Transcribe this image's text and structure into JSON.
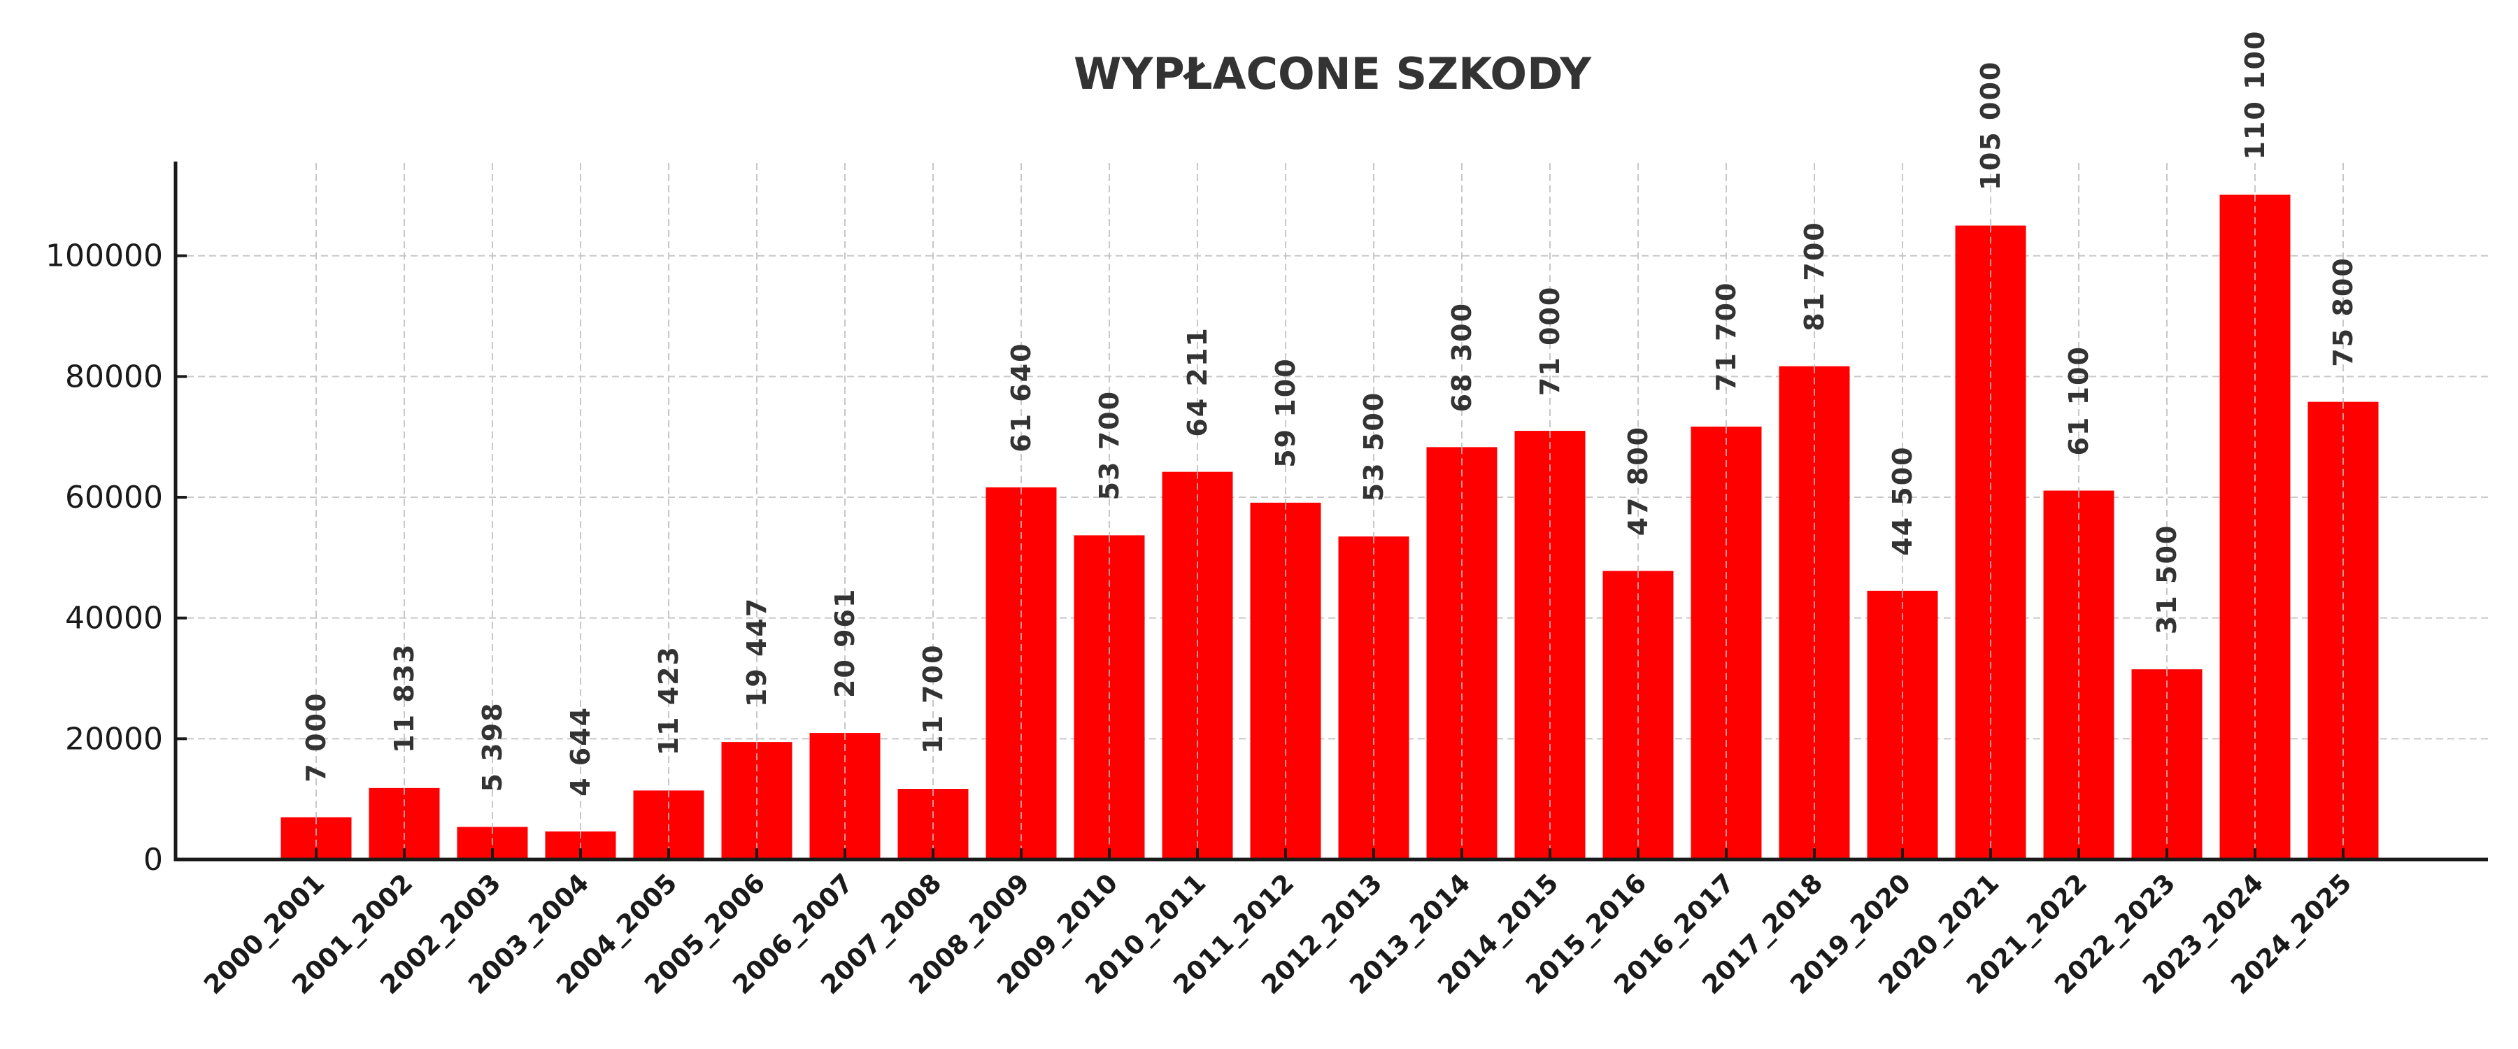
{
  "chart_data": {
    "type": "bar",
    "title": "WYPŁACONE SZKODY",
    "xlabel": "",
    "ylabel": "",
    "categories": [
      "2000_2001",
      "2001_2002",
      "2002_2003",
      "2003_2004",
      "2004_2005",
      "2005_2006",
      "2006_2007",
      "2007_2008",
      "2008_2009",
      "2009_2010",
      "2010_2011",
      "2011_2012",
      "2012_2013",
      "2013_2014",
      "2014_2015",
      "2015_2016",
      "2016_2017",
      "2017_2018",
      "2019_2020",
      "2020_2021",
      "2021_2022",
      "2022_2023",
      "2023_2024",
      "2024_2025"
    ],
    "values": [
      7000,
      11833,
      5398,
      4644,
      11423,
      19447,
      20961,
      11700,
      61640,
      53700,
      64211,
      59100,
      53500,
      68300,
      71000,
      47800,
      71700,
      81700,
      44500,
      105000,
      61100,
      31500,
      110100,
      75800
    ],
    "value_labels": [
      "7 000",
      "11 833",
      "5 398",
      "4 644",
      "11 423",
      "19 447",
      "20 961",
      "11 700",
      "61 640",
      "53 700",
      "64 211",
      "59 100",
      "53 500",
      "68 300",
      "71 000",
      "47 800",
      "71 700",
      "81 700",
      "44 500",
      "105 000",
      "61 100",
      "31 500",
      "110 100",
      "75 800"
    ],
    "ylim": [
      0,
      115605
    ],
    "yticks": [
      0,
      20000,
      40000,
      60000,
      80000,
      100000
    ],
    "ytick_labels": [
      "0",
      "20000",
      "40000",
      "60000",
      "80000",
      "100000"
    ],
    "grid": true,
    "legend": null,
    "bar_color": "#ff0000",
    "xtick_rotation": 45,
    "value_label_rotation": 90
  }
}
